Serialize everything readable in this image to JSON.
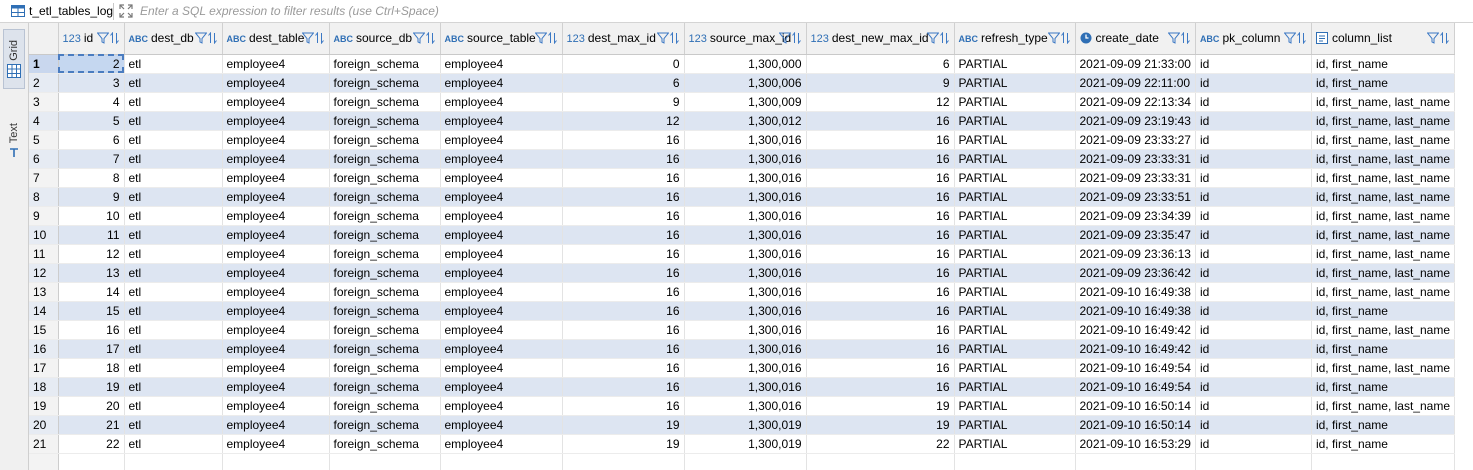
{
  "toolbar": {
    "table_name": "t_etl_tables_log",
    "filter_placeholder": "Enter a SQL expression to filter results (use Ctrl+Space)"
  },
  "side_tabs": {
    "grid": "Grid",
    "text": "Text"
  },
  "columns": [
    {
      "key": "id",
      "type": "123",
      "label": "id"
    },
    {
      "key": "dest_db",
      "type": "ABC",
      "label": "dest_db"
    },
    {
      "key": "dest_table",
      "type": "ABC",
      "label": "dest_table"
    },
    {
      "key": "source_db",
      "type": "ABC",
      "label": "source_db"
    },
    {
      "key": "source_table",
      "type": "ABC",
      "label": "source_table"
    },
    {
      "key": "dest_max_id",
      "type": "123",
      "label": "dest_max_id"
    },
    {
      "key": "source_max_id",
      "type": "123",
      "label": "source_max_id"
    },
    {
      "key": "dest_new_max_id",
      "type": "123",
      "label": "dest_new_max_id"
    },
    {
      "key": "refresh_type",
      "type": "ABC",
      "label": "refresh_type"
    },
    {
      "key": "create_date",
      "type": "clock",
      "label": "create_date"
    },
    {
      "key": "pk_column",
      "type": "ABC",
      "label": "pk_column"
    },
    {
      "key": "column_list",
      "type": "doc",
      "label": "column_list"
    }
  ],
  "rows": [
    [
      "1",
      "2",
      "etl",
      "employee4",
      "foreign_schema",
      "employee4",
      "0",
      "1,300,000",
      "6",
      "PARTIAL",
      "2021-09-09 21:33:00",
      "id",
      "id, first_name"
    ],
    [
      "2",
      "3",
      "etl",
      "employee4",
      "foreign_schema",
      "employee4",
      "6",
      "1,300,006",
      "9",
      "PARTIAL",
      "2021-09-09 22:11:00",
      "id",
      "id, first_name"
    ],
    [
      "3",
      "4",
      "etl",
      "employee4",
      "foreign_schema",
      "employee4",
      "9",
      "1,300,009",
      "12",
      "PARTIAL",
      "2021-09-09 22:13:34",
      "id",
      "id, first_name, last_name"
    ],
    [
      "4",
      "5",
      "etl",
      "employee4",
      "foreign_schema",
      "employee4",
      "12",
      "1,300,012",
      "16",
      "PARTIAL",
      "2021-09-09 23:19:43",
      "id",
      "id, first_name, last_name"
    ],
    [
      "5",
      "6",
      "etl",
      "employee4",
      "foreign_schema",
      "employee4",
      "16",
      "1,300,016",
      "16",
      "PARTIAL",
      "2021-09-09 23:33:27",
      "id",
      "id, first_name, last_name"
    ],
    [
      "6",
      "7",
      "etl",
      "employee4",
      "foreign_schema",
      "employee4",
      "16",
      "1,300,016",
      "16",
      "PARTIAL",
      "2021-09-09 23:33:31",
      "id",
      "id, first_name, last_name"
    ],
    [
      "7",
      "8",
      "etl",
      "employee4",
      "foreign_schema",
      "employee4",
      "16",
      "1,300,016",
      "16",
      "PARTIAL",
      "2021-09-09 23:33:31",
      "id",
      "id, first_name, last_name"
    ],
    [
      "8",
      "9",
      "etl",
      "employee4",
      "foreign_schema",
      "employee4",
      "16",
      "1,300,016",
      "16",
      "PARTIAL",
      "2021-09-09 23:33:51",
      "id",
      "id, first_name, last_name"
    ],
    [
      "9",
      "10",
      "etl",
      "employee4",
      "foreign_schema",
      "employee4",
      "16",
      "1,300,016",
      "16",
      "PARTIAL",
      "2021-09-09 23:34:39",
      "id",
      "id, first_name, last_name"
    ],
    [
      "10",
      "11",
      "etl",
      "employee4",
      "foreign_schema",
      "employee4",
      "16",
      "1,300,016",
      "16",
      "PARTIAL",
      "2021-09-09 23:35:47",
      "id",
      "id, first_name, last_name"
    ],
    [
      "11",
      "12",
      "etl",
      "employee4",
      "foreign_schema",
      "employee4",
      "16",
      "1,300,016",
      "16",
      "PARTIAL",
      "2021-09-09 23:36:13",
      "id",
      "id, first_name, last_name"
    ],
    [
      "12",
      "13",
      "etl",
      "employee4",
      "foreign_schema",
      "employee4",
      "16",
      "1,300,016",
      "16",
      "PARTIAL",
      "2021-09-09 23:36:42",
      "id",
      "id, first_name, last_name"
    ],
    [
      "13",
      "14",
      "etl",
      "employee4",
      "foreign_schema",
      "employee4",
      "16",
      "1,300,016",
      "16",
      "PARTIAL",
      "2021-09-10 16:49:38",
      "id",
      "id, first_name, last_name"
    ],
    [
      "14",
      "15",
      "etl",
      "employee4",
      "foreign_schema",
      "employee4",
      "16",
      "1,300,016",
      "16",
      "PARTIAL",
      "2021-09-10 16:49:38",
      "id",
      "id, first_name"
    ],
    [
      "15",
      "16",
      "etl",
      "employee4",
      "foreign_schema",
      "employee4",
      "16",
      "1,300,016",
      "16",
      "PARTIAL",
      "2021-09-10 16:49:42",
      "id",
      "id, first_name, last_name"
    ],
    [
      "16",
      "17",
      "etl",
      "employee4",
      "foreign_schema",
      "employee4",
      "16",
      "1,300,016",
      "16",
      "PARTIAL",
      "2021-09-10 16:49:42",
      "id",
      "id, first_name"
    ],
    [
      "17",
      "18",
      "etl",
      "employee4",
      "foreign_schema",
      "employee4",
      "16",
      "1,300,016",
      "16",
      "PARTIAL",
      "2021-09-10 16:49:54",
      "id",
      "id, first_name, last_name"
    ],
    [
      "18",
      "19",
      "etl",
      "employee4",
      "foreign_schema",
      "employee4",
      "16",
      "1,300,016",
      "16",
      "PARTIAL",
      "2021-09-10 16:49:54",
      "id",
      "id, first_name"
    ],
    [
      "19",
      "20",
      "etl",
      "employee4",
      "foreign_schema",
      "employee4",
      "16",
      "1,300,016",
      "19",
      "PARTIAL",
      "2021-09-10 16:50:14",
      "id",
      "id, first_name, last_name"
    ],
    [
      "20",
      "21",
      "etl",
      "employee4",
      "foreign_schema",
      "employee4",
      "19",
      "1,300,019",
      "19",
      "PARTIAL",
      "2021-09-10 16:50:14",
      "id",
      "id, first_name"
    ],
    [
      "21",
      "22",
      "etl",
      "employee4",
      "foreign_schema",
      "employee4",
      "19",
      "1,300,019",
      "22",
      "PARTIAL",
      "2021-09-10 16:53:29",
      "id",
      "id, first_name"
    ]
  ],
  "colors": {
    "accent": "#2f6fb5",
    "alt_row": "#dde5f2",
    "header_bg": "#f1f1f1"
  }
}
